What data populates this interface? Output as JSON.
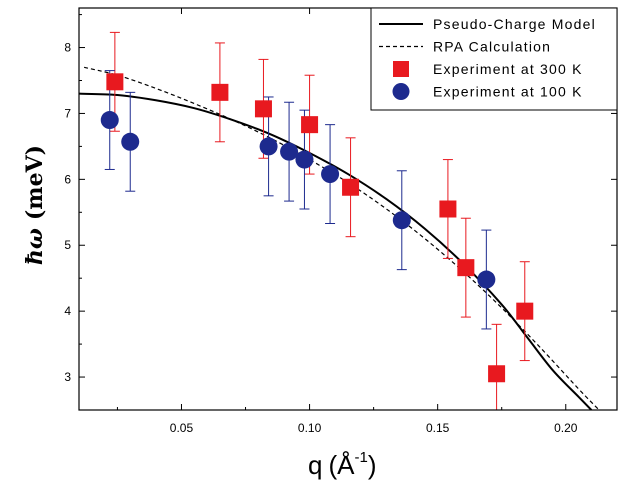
{
  "chart_data": {
    "type": "scatter",
    "title": "",
    "xlabel": {
      "q": "q",
      "open": "(",
      "unit": "Å",
      "sup": "-1",
      "close": ")"
    },
    "ylabel": {
      "symbol": "ħω",
      "unit": "(meV)"
    },
    "xlim": [
      0.01,
      0.22
    ],
    "ylim": [
      2.5,
      8.6
    ],
    "xticks": [
      0.05,
      0.1,
      0.15,
      0.2
    ],
    "xtick_labels": [
      "0.05",
      "0.10",
      "0.15",
      "0.20"
    ],
    "yticks": [
      3,
      4,
      5,
      6,
      7,
      8
    ],
    "ytick_labels": [
      "3",
      "4",
      "5",
      "6",
      "7",
      "8"
    ],
    "grid": false,
    "legend_position": "top-right",
    "colors": {
      "exp300": "#e8191f",
      "exp100": "#1d2a8e",
      "axis": "#000000"
    },
    "series": [
      {
        "name": "Pseudo-Charge Model",
        "kind": "line",
        "style": "solid",
        "x": [
          0.01,
          0.025,
          0.04,
          0.055,
          0.07,
          0.085,
          0.1,
          0.115,
          0.13,
          0.145,
          0.16,
          0.175,
          0.185,
          0.195,
          0.205,
          0.21
        ],
        "y": [
          7.3,
          7.28,
          7.2,
          7.08,
          6.9,
          6.68,
          6.4,
          6.08,
          5.7,
          5.25,
          4.72,
          4.1,
          3.6,
          3.1,
          2.7,
          2.5
        ]
      },
      {
        "name": "RPA Calculation",
        "kind": "line",
        "style": "dashed",
        "x": [
          0.012,
          0.025,
          0.04,
          0.055,
          0.07,
          0.085,
          0.1,
          0.115,
          0.13,
          0.145,
          0.16,
          0.175,
          0.19,
          0.205,
          0.213
        ],
        "y": [
          7.7,
          7.58,
          7.38,
          7.15,
          6.9,
          6.62,
          6.3,
          5.95,
          5.55,
          5.1,
          4.6,
          4.05,
          3.45,
          2.82,
          2.5
        ]
      },
      {
        "name": "Experiment at 300 K",
        "kind": "points",
        "marker": "square",
        "x": [
          0.024,
          0.065,
          0.082,
          0.1,
          0.116,
          0.154,
          0.161,
          0.173,
          0.184
        ],
        "y": [
          7.48,
          7.32,
          7.07,
          6.83,
          5.88,
          5.55,
          4.66,
          3.05,
          4.0
        ],
        "err": [
          0.75,
          0.75,
          0.75,
          0.75,
          0.75,
          0.75,
          0.75,
          0.75,
          0.75
        ]
      },
      {
        "name": "Experiment at 100 K",
        "kind": "points",
        "marker": "circle",
        "x": [
          0.022,
          0.03,
          0.084,
          0.092,
          0.098,
          0.108,
          0.136,
          0.169
        ],
        "y": [
          6.9,
          6.57,
          6.5,
          6.42,
          6.3,
          6.08,
          5.38,
          4.48
        ],
        "err": [
          0.75,
          0.75,
          0.75,
          0.75,
          0.75,
          0.75,
          0.75,
          0.75
        ]
      }
    ]
  }
}
